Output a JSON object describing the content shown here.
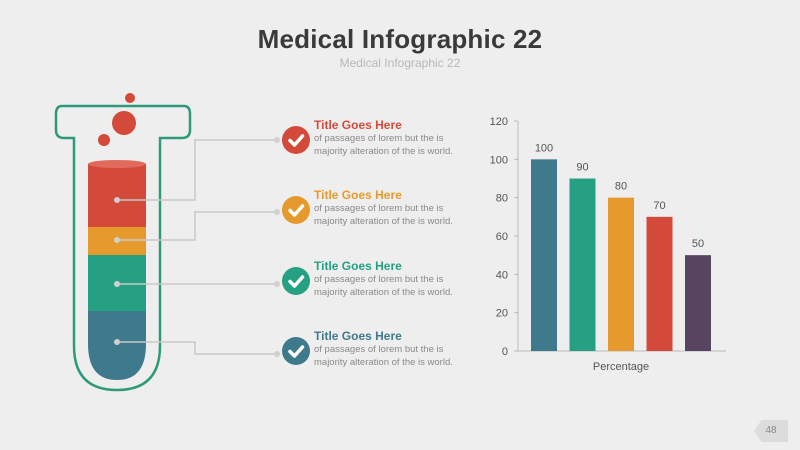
{
  "header": {
    "title": "Medical Infographic 22",
    "subtitle": "Medical Infographic 22"
  },
  "colors": {
    "red": "#d44a3a",
    "orange": "#e69a2e",
    "green": "#26a083",
    "blue": "#3f7a8c",
    "purple": "#57455f",
    "tube_outline": "#2e9a7a",
    "connector": "#c8c8c8"
  },
  "items": [
    {
      "title": "Title Goes Here",
      "body": "of passages of lorem but the is majority alteration of the is world.",
      "color": "#d44a3a",
      "icon": "check-icon"
    },
    {
      "title": "Title Goes Here",
      "body": "of passages of lorem but the is majority alteration of the is world.",
      "color": "#e69a2e",
      "icon": "check-icon"
    },
    {
      "title": "Title Goes Here",
      "body": "of passages of lorem but the is majority alteration of the is world.",
      "color": "#26a083",
      "icon": "check-icon"
    },
    {
      "title": "Title Goes Here",
      "body": "of passages of lorem but the is majority alteration of the is world.",
      "color": "#3f7a8c",
      "icon": "check-icon"
    }
  ],
  "chart_data": {
    "type": "bar",
    "categories": [
      "",
      "",
      "",
      "",
      ""
    ],
    "values": [
      100,
      90,
      80,
      70,
      50
    ],
    "value_labels": [
      "100",
      "90",
      "80",
      "70",
      "50"
    ],
    "bar_colors": [
      "#3f7a8c",
      "#26a083",
      "#e69a2e",
      "#d44a3a",
      "#57455f"
    ],
    "title": "",
    "xlabel": "Percentage",
    "ylabel": "",
    "ylim": [
      0,
      120
    ],
    "yticks": [
      0,
      20,
      40,
      60,
      80,
      100,
      120
    ],
    "grid": false
  },
  "footer": {
    "page_number": "48"
  }
}
